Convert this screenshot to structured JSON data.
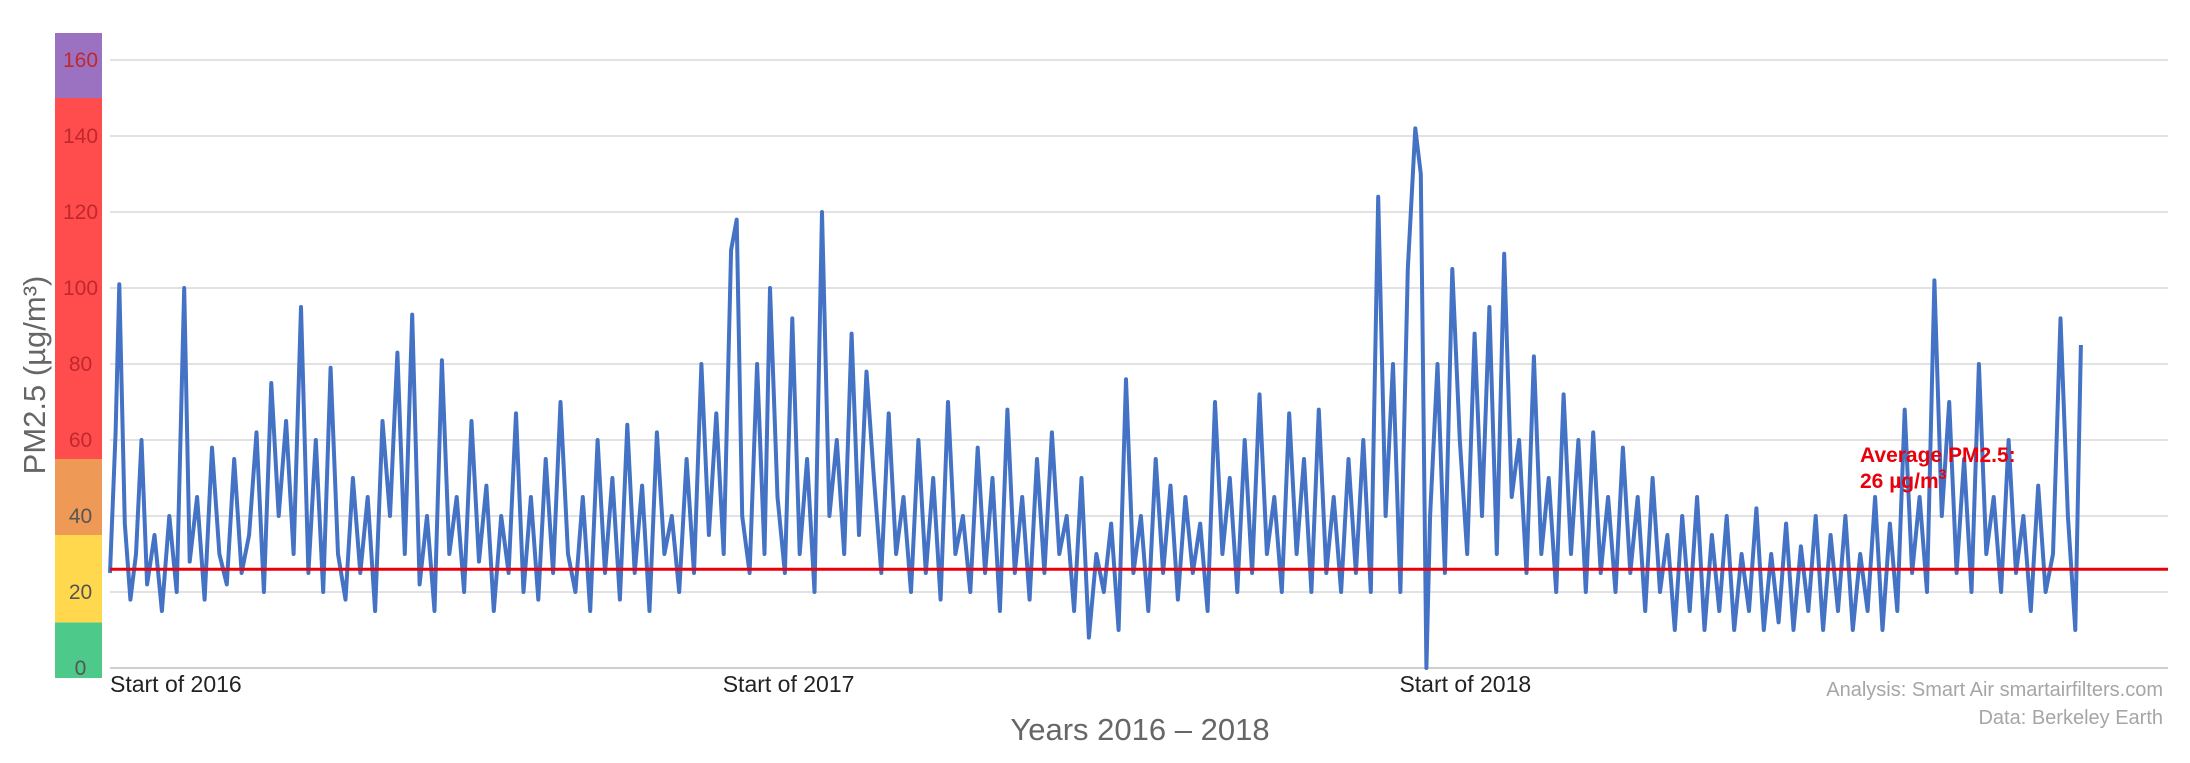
{
  "chart_data": {
    "type": "line",
    "title": "",
    "ylabel": "PM2.5 (µg/m³)",
    "xlabel": "Years 2016 – 2018",
    "ylim": [
      0,
      165
    ],
    "xlim": [
      0,
      1110
    ],
    "yticks": [
      0,
      20,
      40,
      60,
      80,
      100,
      120,
      140,
      160
    ],
    "x_ticks": [
      {
        "label": "Start of 2016",
        "x": 0
      },
      {
        "label": "Start of 2017",
        "x": 366
      },
      {
        "label": "Start of 2018",
        "x": 731
      }
    ],
    "grid": true,
    "aqi_bands": [
      {
        "from": 0,
        "to": 12,
        "color": "#4dc98a"
      },
      {
        "from": 12,
        "to": 35,
        "color": "#ffd84d"
      },
      {
        "from": 35,
        "to": 55,
        "color": "#ee9955"
      },
      {
        "from": 55,
        "to": 150,
        "color": "#ff4d4d"
      },
      {
        "from": 150,
        "to": 170,
        "color": "#9b72c2"
      }
    ],
    "series": [
      {
        "color": "#4472c4",
        "x_unit": "days since start of 2016",
        "points": [
          [
            0,
            25
          ],
          [
            3,
            62
          ],
          [
            5,
            101
          ],
          [
            8,
            38
          ],
          [
            11,
            18
          ],
          [
            14,
            30
          ],
          [
            17,
            60
          ],
          [
            20,
            22
          ],
          [
            24,
            35
          ],
          [
            28,
            15
          ],
          [
            32,
            40
          ],
          [
            36,
            20
          ],
          [
            40,
            100
          ],
          [
            43,
            28
          ],
          [
            47,
            45
          ],
          [
            51,
            18
          ],
          [
            55,
            58
          ],
          [
            59,
            30
          ],
          [
            63,
            22
          ],
          [
            67,
            55
          ],
          [
            71,
            25
          ],
          [
            75,
            35
          ],
          [
            79,
            62
          ],
          [
            83,
            20
          ],
          [
            87,
            75
          ],
          [
            91,
            40
          ],
          [
            95,
            65
          ],
          [
            99,
            30
          ],
          [
            103,
            95
          ],
          [
            107,
            25
          ],
          [
            111,
            60
          ],
          [
            115,
            20
          ],
          [
            119,
            79
          ],
          [
            123,
            30
          ],
          [
            127,
            18
          ],
          [
            131,
            50
          ],
          [
            135,
            25
          ],
          [
            139,
            45
          ],
          [
            143,
            15
          ],
          [
            147,
            65
          ],
          [
            151,
            40
          ],
          [
            155,
            83
          ],
          [
            159,
            30
          ],
          [
            163,
            93
          ],
          [
            167,
            22
          ],
          [
            171,
            40
          ],
          [
            175,
            15
          ],
          [
            179,
            81
          ],
          [
            183,
            30
          ],
          [
            187,
            45
          ],
          [
            191,
            20
          ],
          [
            195,
            65
          ],
          [
            199,
            28
          ],
          [
            203,
            48
          ],
          [
            207,
            15
          ],
          [
            211,
            40
          ],
          [
            215,
            25
          ],
          [
            219,
            67
          ],
          [
            223,
            20
          ],
          [
            227,
            45
          ],
          [
            231,
            18
          ],
          [
            235,
            55
          ],
          [
            239,
            25
          ],
          [
            243,
            70
          ],
          [
            247,
            30
          ],
          [
            251,
            20
          ],
          [
            255,
            45
          ],
          [
            259,
            15
          ],
          [
            263,
            60
          ],
          [
            267,
            25
          ],
          [
            271,
            50
          ],
          [
            275,
            18
          ],
          [
            279,
            64
          ],
          [
            283,
            25
          ],
          [
            287,
            48
          ],
          [
            291,
            15
          ],
          [
            295,
            62
          ],
          [
            299,
            30
          ],
          [
            303,
            40
          ],
          [
            307,
            20
          ],
          [
            311,
            55
          ],
          [
            315,
            25
          ],
          [
            319,
            80
          ],
          [
            323,
            35
          ],
          [
            327,
            67
          ],
          [
            331,
            30
          ],
          [
            335,
            110
          ],
          [
            338,
            118
          ],
          [
            341,
            40
          ],
          [
            345,
            25
          ],
          [
            349,
            80
          ],
          [
            353,
            30
          ],
          [
            356,
            100
          ],
          [
            360,
            45
          ],
          [
            364,
            25
          ],
          [
            368,
            92
          ],
          [
            372,
            30
          ],
          [
            376,
            55
          ],
          [
            380,
            20
          ],
          [
            384,
            120
          ],
          [
            388,
            40
          ],
          [
            392,
            60
          ],
          [
            396,
            30
          ],
          [
            400,
            88
          ],
          [
            404,
            35
          ],
          [
            408,
            78
          ],
          [
            412,
            50
          ],
          [
            416,
            25
          ],
          [
            420,
            67
          ],
          [
            424,
            30
          ],
          [
            428,
            45
          ],
          [
            432,
            20
          ],
          [
            436,
            60
          ],
          [
            440,
            25
          ],
          [
            444,
            50
          ],
          [
            448,
            18
          ],
          [
            452,
            70
          ],
          [
            456,
            30
          ],
          [
            460,
            40
          ],
          [
            464,
            20
          ],
          [
            468,
            58
          ],
          [
            472,
            25
          ],
          [
            476,
            50
          ],
          [
            480,
            15
          ],
          [
            484,
            68
          ],
          [
            488,
            25
          ],
          [
            492,
            45
          ],
          [
            496,
            18
          ],
          [
            500,
            55
          ],
          [
            504,
            25
          ],
          [
            508,
            62
          ],
          [
            512,
            30
          ],
          [
            516,
            40
          ],
          [
            520,
            15
          ],
          [
            524,
            50
          ],
          [
            528,
            8
          ],
          [
            532,
            30
          ],
          [
            536,
            20
          ],
          [
            540,
            38
          ],
          [
            544,
            10
          ],
          [
            548,
            76
          ],
          [
            552,
            25
          ],
          [
            556,
            40
          ],
          [
            560,
            15
          ],
          [
            564,
            55
          ],
          [
            568,
            25
          ],
          [
            572,
            48
          ],
          [
            576,
            18
          ],
          [
            580,
            45
          ],
          [
            584,
            25
          ],
          [
            588,
            38
          ],
          [
            592,
            15
          ],
          [
            596,
            70
          ],
          [
            600,
            30
          ],
          [
            604,
            50
          ],
          [
            608,
            20
          ],
          [
            612,
            60
          ],
          [
            616,
            25
          ],
          [
            620,
            72
          ],
          [
            624,
            30
          ],
          [
            628,
            45
          ],
          [
            632,
            20
          ],
          [
            636,
            67
          ],
          [
            640,
            30
          ],
          [
            644,
            55
          ],
          [
            648,
            20
          ],
          [
            652,
            68
          ],
          [
            656,
            25
          ],
          [
            660,
            45
          ],
          [
            664,
            20
          ],
          [
            668,
            55
          ],
          [
            672,
            25
          ],
          [
            676,
            60
          ],
          [
            680,
            20
          ],
          [
            684,
            124
          ],
          [
            688,
            40
          ],
          [
            692,
            80
          ],
          [
            696,
            20
          ],
          [
            700,
            105
          ],
          [
            704,
            142
          ],
          [
            707,
            130
          ],
          [
            710,
            0
          ],
          [
            712,
            40
          ],
          [
            716,
            80
          ],
          [
            720,
            25
          ],
          [
            724,
            105
          ],
          [
            728,
            60
          ],
          [
            732,
            30
          ],
          [
            736,
            88
          ],
          [
            740,
            40
          ],
          [
            744,
            95
          ],
          [
            748,
            30
          ],
          [
            752,
            109
          ],
          [
            756,
            45
          ],
          [
            760,
            60
          ],
          [
            764,
            25
          ],
          [
            768,
            82
          ],
          [
            772,
            30
          ],
          [
            776,
            50
          ],
          [
            780,
            20
          ],
          [
            784,
            72
          ],
          [
            788,
            30
          ],
          [
            792,
            60
          ],
          [
            796,
            20
          ],
          [
            800,
            62
          ],
          [
            804,
            25
          ],
          [
            808,
            45
          ],
          [
            812,
            20
          ],
          [
            816,
            58
          ],
          [
            820,
            25
          ],
          [
            824,
            45
          ],
          [
            828,
            15
          ],
          [
            832,
            50
          ],
          [
            836,
            20
          ],
          [
            840,
            35
          ],
          [
            844,
            10
          ],
          [
            848,
            40
          ],
          [
            852,
            15
          ],
          [
            856,
            45
          ],
          [
            860,
            10
          ],
          [
            864,
            35
          ],
          [
            868,
            15
          ],
          [
            872,
            40
          ],
          [
            876,
            10
          ],
          [
            880,
            30
          ],
          [
            884,
            15
          ],
          [
            888,
            42
          ],
          [
            892,
            10
          ],
          [
            896,
            30
          ],
          [
            900,
            12
          ],
          [
            904,
            38
          ],
          [
            908,
            10
          ],
          [
            912,
            32
          ],
          [
            916,
            15
          ],
          [
            920,
            40
          ],
          [
            924,
            10
          ],
          [
            928,
            35
          ],
          [
            932,
            15
          ],
          [
            936,
            40
          ],
          [
            940,
            10
          ],
          [
            944,
            30
          ],
          [
            948,
            15
          ],
          [
            952,
            45
          ],
          [
            956,
            10
          ],
          [
            960,
            38
          ],
          [
            964,
            15
          ],
          [
            968,
            68
          ],
          [
            972,
            25
          ],
          [
            976,
            45
          ],
          [
            980,
            20
          ],
          [
            984,
            102
          ],
          [
            988,
            40
          ],
          [
            992,
            70
          ],
          [
            996,
            25
          ],
          [
            1000,
            55
          ],
          [
            1004,
            20
          ],
          [
            1008,
            80
          ],
          [
            1012,
            30
          ],
          [
            1016,
            45
          ],
          [
            1020,
            20
          ],
          [
            1024,
            60
          ],
          [
            1028,
            25
          ],
          [
            1032,
            40
          ],
          [
            1036,
            15
          ],
          [
            1040,
            48
          ],
          [
            1044,
            20
          ],
          [
            1048,
            30
          ],
          [
            1052,
            92
          ],
          [
            1056,
            40
          ],
          [
            1060,
            10
          ],
          [
            1063,
            85
          ]
        ]
      }
    ],
    "average_line": {
      "value": 26,
      "color": "#e8000b",
      "label_line1": "Average PM2.5:",
      "label_line2": "26 µg/m",
      "label_sup": "3"
    },
    "credits": {
      "analysis": "Analysis: Smart Air smartairfilters.com",
      "data": "Data: Berkeley Earth"
    }
  }
}
